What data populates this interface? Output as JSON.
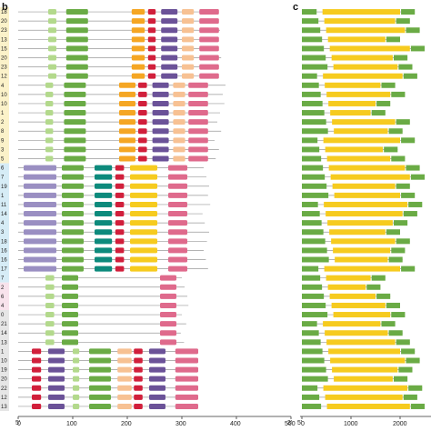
{
  "panels": [
    {
      "letter": "b",
      "prime5": "5'",
      "prime3": "3'",
      "ticks": [
        "0",
        "100",
        "200",
        "300",
        "400",
        "500"
      ]
    },
    {
      "letter": "c",
      "prime5": "5'",
      "ticks": [
        "0",
        "1000",
        "2000"
      ]
    }
  ],
  "row_labels": [
    "18",
    "20",
    "23",
    "13",
    "15",
    "20",
    "23",
    "12",
    "4",
    "10",
    "10",
    "1",
    "2",
    "8",
    "9",
    "3",
    "5",
    "6",
    "7",
    "19",
    "1",
    "11",
    "14",
    "4",
    "3",
    "18",
    "16",
    "16",
    "17",
    "7",
    "2",
    "6",
    "4",
    "0",
    "21",
    "14",
    "13",
    "1",
    "10",
    "19",
    "20",
    "22",
    "12",
    "13"
  ],
  "colors": {
    "light_green": "#b3d98c",
    "green": "#6aab45",
    "orange": "#f5a623",
    "red": "#d11f3b",
    "purple": "#6b5298",
    "peach": "#f7c193",
    "pink": "#df6a8c",
    "lavender": "#9a8fc2",
    "teal": "#0d8a7c",
    "yellow": "#f6cb1f",
    "line": "#9a9a9a",
    "bg_yellow": "#fbf2c9",
    "bg_blue": "#d6ecf6",
    "bg_pink": "#f8e3ec",
    "bg_gray": "#e6e6e6"
  },
  "chart_data": [
    {
      "type": "diagram",
      "panel": "b",
      "x_unit": "aa",
      "x_range": [
        0,
        500
      ],
      "ticks": [
        0,
        100,
        200,
        300,
        400,
        500
      ],
      "rows_count": 44
    },
    {
      "type": "diagram",
      "panel": "c",
      "x_unit": "bp",
      "x_range": [
        0,
        2500
      ],
      "ticks": [
        0,
        1000,
        2000
      ],
      "rows_count": 44
    }
  ]
}
